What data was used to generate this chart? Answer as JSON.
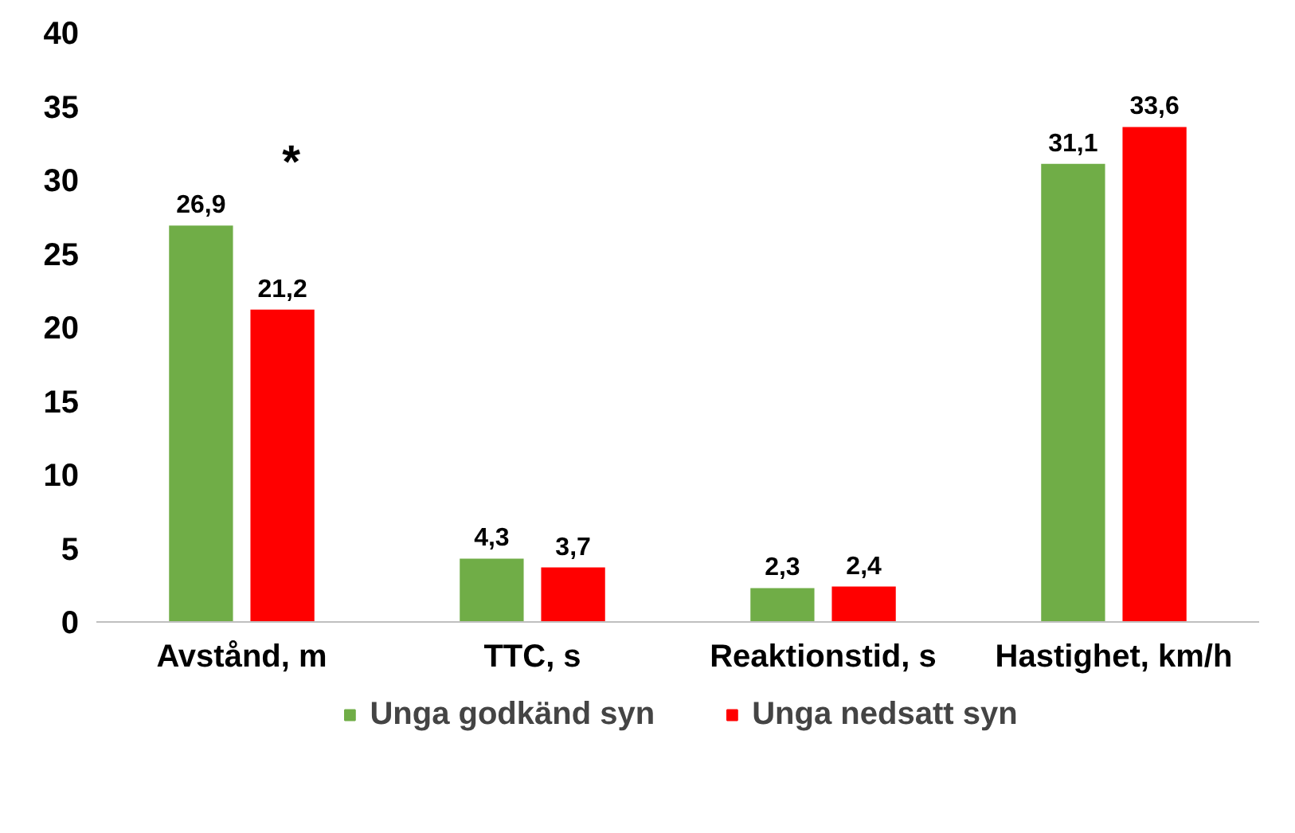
{
  "chart_data": {
    "type": "bar",
    "categories": [
      "Avstånd, m",
      "TTC, s",
      "Reaktionstid, s",
      "Hastighet, km/h"
    ],
    "series": [
      {
        "name": "Unga godkänd syn",
        "color": "#70ad47",
        "values": [
          26.9,
          4.3,
          2.3,
          31.1
        ],
        "value_labels": [
          "26,9",
          "4,3",
          "2,3",
          "31,1"
        ]
      },
      {
        "name": "Unga nedsatt syn",
        "color": "#ff0000",
        "values": [
          21.2,
          3.7,
          2.4,
          33.6
        ],
        "value_labels": [
          "21,2",
          "3,7",
          "2,4",
          "33,6"
        ]
      }
    ],
    "ylim": [
      0,
      40
    ],
    "yticks": [
      0,
      5,
      10,
      15,
      20,
      25,
      30,
      35,
      40
    ],
    "annotations": [
      "*"
    ],
    "grid": false,
    "legend": "bottom"
  }
}
